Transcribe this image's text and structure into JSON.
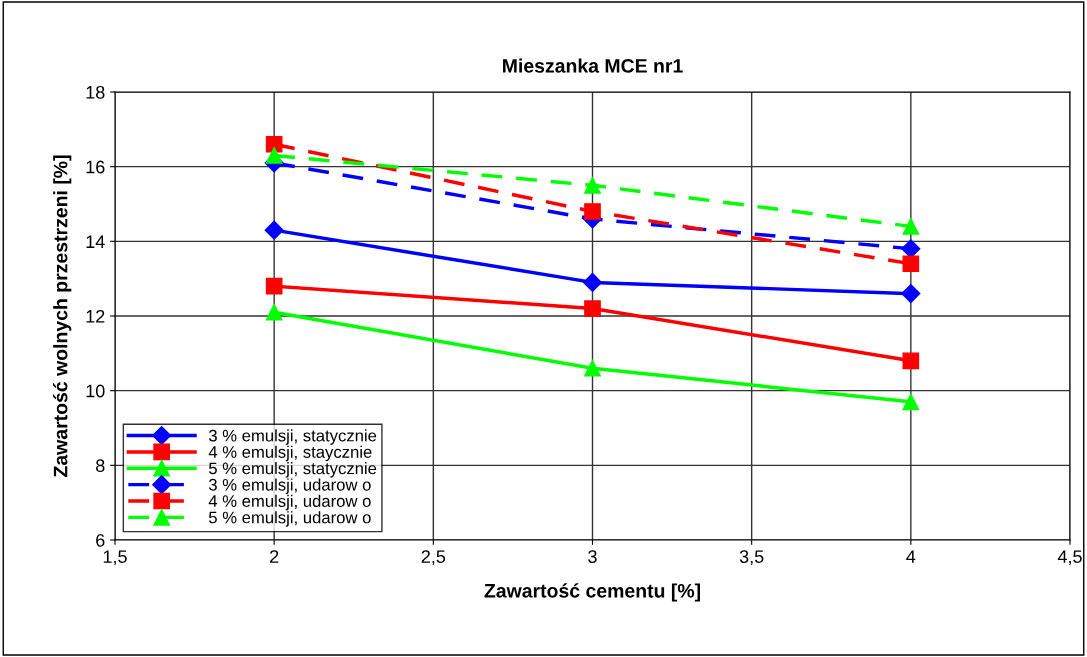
{
  "chart_data": {
    "type": "line",
    "title": "Mieszanka MCE nr1",
    "xlabel": "Zawartość cementu [%]",
    "ylabel": "Zawartość wolnych przestrzeni [%]",
    "x": [
      2,
      3,
      4
    ],
    "series": [
      {
        "name": "3 % emulsji, statycznie",
        "color": "#0000ff",
        "marker": "diamond",
        "line_style": "solid",
        "values": [
          14.3,
          12.9,
          12.6
        ]
      },
      {
        "name": "4 % emulsji, staycznie",
        "color": "#ff0000",
        "marker": "square",
        "line_style": "solid",
        "values": [
          12.8,
          12.2,
          10.8
        ]
      },
      {
        "name": "5 % emulsji, statycznie",
        "color": "#00ff00",
        "marker": "triangle",
        "line_style": "solid",
        "values": [
          12.1,
          10.6,
          9.7
        ]
      },
      {
        "name": "3 % emulsji, udarow o",
        "color": "#0000ff",
        "marker": "diamond",
        "line_style": "dashed",
        "values": [
          16.1,
          14.6,
          13.8
        ]
      },
      {
        "name": "4 % emulsji, udarow o",
        "color": "#ff0000",
        "marker": "square",
        "line_style": "dashed",
        "values": [
          16.6,
          14.8,
          13.4
        ]
      },
      {
        "name": "5 % emulsji, udarow o",
        "color": "#00ff00",
        "marker": "triangle",
        "line_style": "dashed",
        "values": [
          16.3,
          15.5,
          14.4
        ]
      }
    ],
    "xlim": [
      1.5,
      4.5
    ],
    "xticks": [
      {
        "value": 1.5,
        "label": "1,5"
      },
      2,
      {
        "value": 2.5,
        "label": "2,5"
      },
      3,
      {
        "value": 3.5,
        "label": "3,5"
      },
      4,
      {
        "value": 4.5,
        "label": "4,5"
      }
    ],
    "ylim": [
      6,
      18
    ],
    "yticks": [
      6,
      8,
      10,
      12,
      14,
      16,
      18
    ],
    "grid": true,
    "legend": "bottom left"
  }
}
